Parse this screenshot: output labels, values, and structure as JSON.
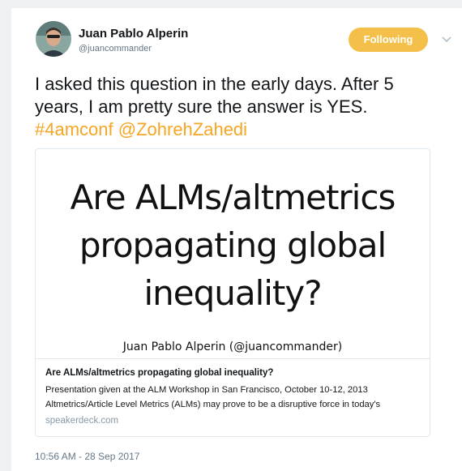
{
  "tweet": {
    "author": {
      "name": "Juan Pablo Alperin",
      "handle": "@juancommander"
    },
    "follow_button": "Following",
    "text": "I asked this question in the early days. After 5 years, I am pretty sure the answer is YES.",
    "hashtag": "#4amconf",
    "mention": "@ZohrehZahedi",
    "card": {
      "slide_title": "Are ALMs/altmetrics propagating global inequality?",
      "slide_author": "Juan Pablo Alperin (@juancommander)",
      "title": "Are ALMs/altmetrics propagating global inequality?",
      "description": "Presentation given at the ALM Workshop in San Francisco, October 10-12, 2013 Altmetrics/Article Level Metrics (ALMs) may prove to be a disruptive force in today's",
      "domain": "speakerdeck.com"
    },
    "timestamp": "10:56 AM - 28 Sep 2017"
  }
}
